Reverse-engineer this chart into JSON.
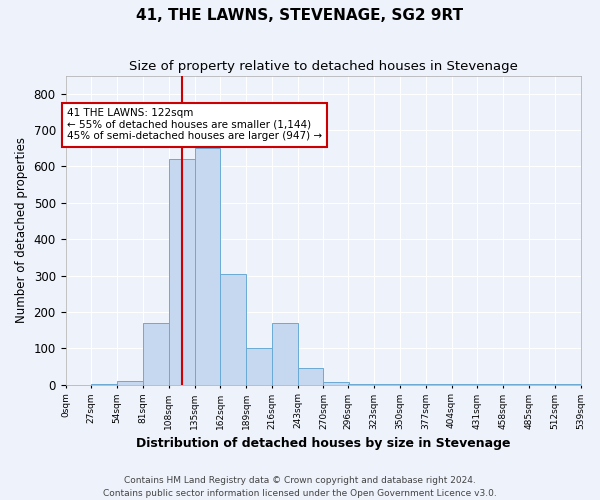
{
  "title": "41, THE LAWNS, STEVENAGE, SG2 9RT",
  "subtitle": "Size of property relative to detached houses in Stevenage",
  "xlabel": "Distribution of detached houses by size in Stevenage",
  "ylabel": "Number of detached properties",
  "bin_labels": [
    "0sqm",
    "27sqm",
    "54sqm",
    "81sqm",
    "108sqm",
    "135sqm",
    "162sqm",
    "189sqm",
    "216sqm",
    "243sqm",
    "270sqm",
    "296sqm",
    "323sqm",
    "350sqm",
    "377sqm",
    "404sqm",
    "431sqm",
    "458sqm",
    "485sqm",
    "512sqm",
    "539sqm"
  ],
  "bar_values": [
    0,
    3,
    10,
    170,
    620,
    650,
    305,
    100,
    170,
    45,
    8,
    3,
    2,
    2,
    2,
    2,
    2,
    2,
    2,
    2
  ],
  "bin_edges": [
    0,
    27,
    54,
    81,
    108,
    135,
    162,
    189,
    216,
    243,
    270,
    296,
    323,
    350,
    377,
    404,
    431,
    458,
    485,
    512,
    539
  ],
  "bar_color": "#c5d8f0",
  "bar_edge_color": "#6aaad4",
  "property_value": 122,
  "red_line_color": "#cc0000",
  "annotation_text": "41 THE LAWNS: 122sqm\n← 55% of detached houses are smaller (1,144)\n45% of semi-detached houses are larger (947) →",
  "annotation_box_color": "#ffffff",
  "annotation_box_edge": "#cc0000",
  "footer": "Contains HM Land Registry data © Crown copyright and database right 2024.\nContains public sector information licensed under the Open Government Licence v3.0.",
  "ylim": [
    0,
    850
  ],
  "background_color": "#eef2fb",
  "grid_color": "#ffffff",
  "title_fontsize": 11,
  "subtitle_fontsize": 9.5,
  "footer_fontsize": 6.5
}
